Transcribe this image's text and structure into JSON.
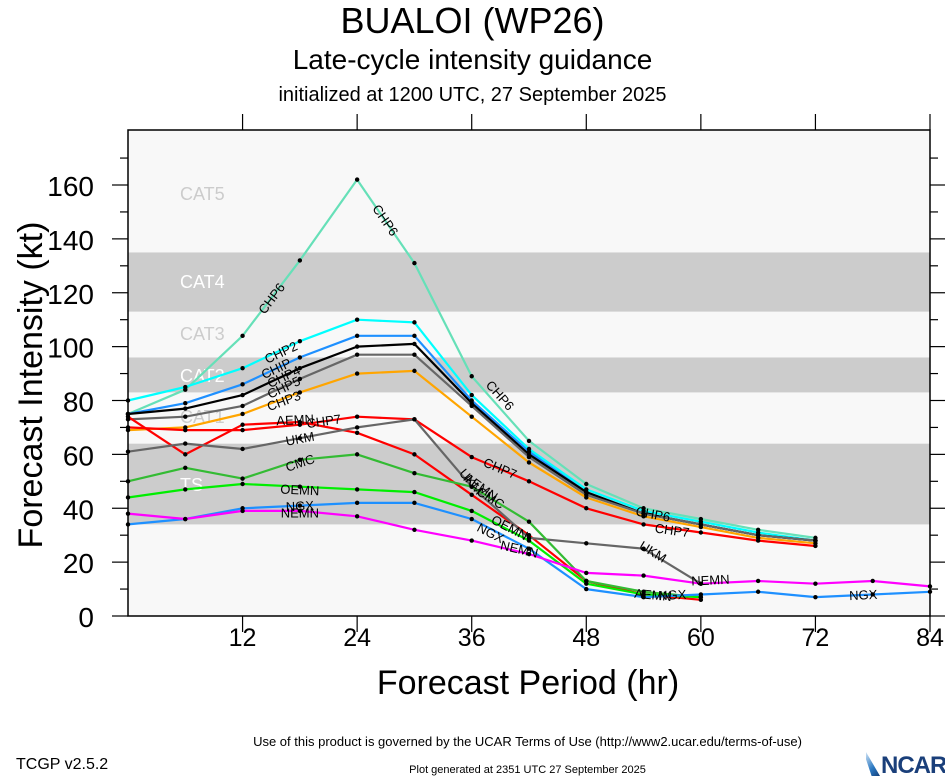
{
  "header": {
    "title": "BUALOI (WP26)",
    "subtitle": "Late-cycle intensity guidance",
    "init": "initialized at 1200 UTC, 27 September 2025"
  },
  "footer": {
    "terms": "Use of this product is governed by the UCAR Terms of Use (http://www2.ucar.edu/terms-of-use)",
    "version": "TCGP v2.5.2",
    "generated": "Plot generated at 2351 UTC   27 September 2025",
    "logo": "NCAR"
  },
  "chart_data": {
    "type": "line",
    "title": "BUALOI (WP26)",
    "subtitle": "Late-cycle intensity guidance",
    "xlabel": "Forecast Period (hr)",
    "ylabel": "Forecast Intensity (kt)",
    "xlim": [
      0,
      84
    ],
    "ylim": [
      0,
      170
    ],
    "xticks": [
      12,
      24,
      36,
      48,
      60,
      72,
      84
    ],
    "yticks": [
      0,
      20,
      40,
      60,
      80,
      100,
      120,
      140,
      160
    ],
    "grid": false,
    "legend": "inline-labels",
    "bands": [
      {
        "label": "TS",
        "min": 34,
        "max": 64,
        "shade": "#cccccc",
        "label_color": "#ffffff"
      },
      {
        "label": "CAT1",
        "min": 64,
        "max": 83,
        "shade": "#f8f8f8",
        "label_color": "#cccccc"
      },
      {
        "label": "CAT2",
        "min": 83,
        "max": 96,
        "shade": "#cccccc",
        "label_color": "#ffffff"
      },
      {
        "label": "CAT3",
        "min": 96,
        "max": 113,
        "shade": "#f8f8f8",
        "label_color": "#cccccc"
      },
      {
        "label": "CAT4",
        "min": 113,
        "max": 135,
        "shade": "#cccccc",
        "label_color": "#ffffff"
      },
      {
        "label": "CAT5",
        "min": 135,
        "max": 170,
        "shade": "#f8f8f8",
        "label_color": "#cccccc"
      }
    ],
    "series": [
      {
        "name": "CHP6",
        "color": "#66e0b8",
        "x": [
          0,
          6,
          12,
          18,
          24,
          30,
          36,
          42,
          48,
          54,
          60,
          66,
          72
        ],
        "y": [
          75,
          84,
          104,
          132,
          162,
          131,
          89,
          65,
          49,
          40,
          36,
          32,
          29
        ]
      },
      {
        "name": "CHP2",
        "color": "#00ffff",
        "x": [
          0,
          6,
          12,
          18,
          24,
          30,
          36,
          42,
          48,
          54,
          60,
          66,
          72
        ],
        "y": [
          80,
          85,
          92,
          102,
          110,
          109,
          82,
          62,
          47,
          39,
          35,
          31,
          28
        ]
      },
      {
        "name": "CHIP",
        "color": "#1e90ff",
        "x": [
          0,
          6,
          12,
          18,
          24,
          30,
          36,
          42,
          48,
          54,
          60,
          66,
          72
        ],
        "y": [
          75,
          79,
          86,
          96,
          104,
          104,
          80,
          61,
          46,
          38,
          34,
          30,
          28
        ]
      },
      {
        "name": "CHP4",
        "color": "#000000",
        "x": [
          0,
          6,
          12,
          18,
          24,
          30,
          36,
          42,
          48,
          54,
          60,
          66,
          72
        ],
        "y": [
          75,
          77,
          82,
          92,
          100,
          101,
          79,
          60,
          46,
          38,
          34,
          30,
          28
        ]
      },
      {
        "name": "CHP5",
        "color": "#666666",
        "x": [
          0,
          6,
          12,
          18,
          24,
          30,
          36,
          42,
          48,
          54,
          60,
          66,
          72
        ],
        "y": [
          73,
          74,
          78,
          88,
          97,
          97,
          78,
          59,
          45,
          38,
          34,
          30,
          28
        ]
      },
      {
        "name": "CHP3",
        "color": "#ffa500",
        "x": [
          0,
          6,
          12,
          18,
          24,
          30,
          36,
          42,
          48,
          54,
          60,
          66,
          72
        ],
        "y": [
          69,
          70,
          75,
          83,
          90,
          91,
          74,
          57,
          44,
          37,
          33,
          29,
          27
        ]
      },
      {
        "name": "CHP7",
        "color": "#ff0000",
        "x": [
          0,
          6,
          12,
          18,
          24,
          30,
          36,
          42,
          48,
          54,
          60,
          66,
          72
        ],
        "y": [
          70,
          69,
          69,
          71,
          74,
          73,
          59,
          50,
          40,
          34,
          31,
          28,
          26
        ]
      },
      {
        "name": "AEMN",
        "color": "#ff0000",
        "x": [
          0,
          6,
          12,
          18,
          24,
          30,
          36,
          42,
          48,
          54,
          60
        ],
        "y": [
          74,
          60,
          71,
          72,
          68,
          60,
          45,
          30,
          13,
          8,
          6
        ]
      },
      {
        "name": "UKM",
        "color": "#666666",
        "x": [
          0,
          6,
          12,
          18,
          24,
          30,
          36,
          42,
          48,
          54,
          60
        ],
        "y": [
          61,
          64,
          62,
          66,
          70,
          73,
          48,
          29,
          27,
          25,
          12
        ]
      },
      {
        "name": "CMC",
        "color": "#33bb33",
        "x": [
          0,
          6,
          12,
          18,
          24,
          30,
          36,
          42,
          48,
          54,
          60
        ],
        "y": [
          50,
          55,
          51,
          58,
          60,
          53,
          48,
          35,
          13,
          9,
          7
        ]
      },
      {
        "name": "OEMN",
        "color": "#00ee00",
        "x": [
          0,
          6,
          12,
          18,
          24,
          30,
          36,
          42,
          48,
          54,
          60
        ],
        "y": [
          44,
          47,
          49,
          48,
          47,
          46,
          39,
          28,
          12,
          8,
          7
        ]
      },
      {
        "name": "NGX",
        "color": "#1e90ff",
        "x": [
          0,
          6,
          12,
          18,
          24,
          30,
          36,
          42,
          48,
          54,
          60,
          66,
          72,
          78,
          84
        ],
        "y": [
          34,
          36,
          40,
          41,
          42,
          42,
          36,
          25,
          10,
          7,
          8,
          9,
          7,
          8,
          9
        ]
      },
      {
        "name": "NEMN",
        "color": "#ff00ff",
        "x": [
          0,
          6,
          12,
          18,
          24,
          30,
          36,
          42,
          48,
          54,
          60,
          66,
          72,
          78,
          84
        ],
        "y": [
          38,
          36,
          39,
          39,
          37,
          32,
          28,
          23,
          16,
          15,
          12,
          13,
          12,
          13,
          11
        ]
      }
    ],
    "labels": [
      {
        "series": "CHP6",
        "x": 15,
        "y": 118
      },
      {
        "series": "CHP6",
        "x": 27,
        "y": 147
      },
      {
        "series": "CHP6",
        "x": 39,
        "y": 82
      },
      {
        "series": "CHP6",
        "x": 55,
        "y": 38
      },
      {
        "series": "CHP2",
        "x": 16,
        "y": 98
      },
      {
        "series": "CHIP",
        "x": 15.5,
        "y": 92
      },
      {
        "series": "CHP4",
        "x": 16.3,
        "y": 89
      },
      {
        "series": "CHP5",
        "x": 16.3,
        "y": 85
      },
      {
        "series": "CHP3",
        "x": 16.3,
        "y": 80
      },
      {
        "series": "CHP7",
        "x": 20.5,
        "y": 72.5
      },
      {
        "series": "CHP7",
        "x": 39,
        "y": 55
      },
      {
        "series": "CHP7",
        "x": 57,
        "y": 32
      },
      {
        "series": "AEMN",
        "x": 17.5,
        "y": 73
      },
      {
        "series": "AEMN",
        "x": 37,
        "y": 48
      },
      {
        "series": "AEMN",
        "x": 55,
        "y": 8
      },
      {
        "series": "UKM",
        "x": 18,
        "y": 66
      },
      {
        "series": "UKM",
        "x": 36,
        "y": 50
      },
      {
        "series": "UKM",
        "x": 55,
        "y": 24
      },
      {
        "series": "CMC",
        "x": 18,
        "y": 57
      },
      {
        "series": "CMC",
        "x": 38,
        "y": 44
      },
      {
        "series": "OEMN",
        "x": 18,
        "y": 47
      },
      {
        "series": "OEMN",
        "x": 40,
        "y": 33
      },
      {
        "series": "NGX",
        "x": 18,
        "y": 41
      },
      {
        "series": "NGX",
        "x": 38,
        "y": 31
      },
      {
        "series": "NGX",
        "x": 57,
        "y": 8
      },
      {
        "series": "NGX",
        "x": 77,
        "y": 8
      },
      {
        "series": "NEMN",
        "x": 18,
        "y": 38.5
      },
      {
        "series": "NEMN",
        "x": 41,
        "y": 25
      },
      {
        "series": "NEMN",
        "x": 61,
        "y": 13.5
      }
    ]
  }
}
